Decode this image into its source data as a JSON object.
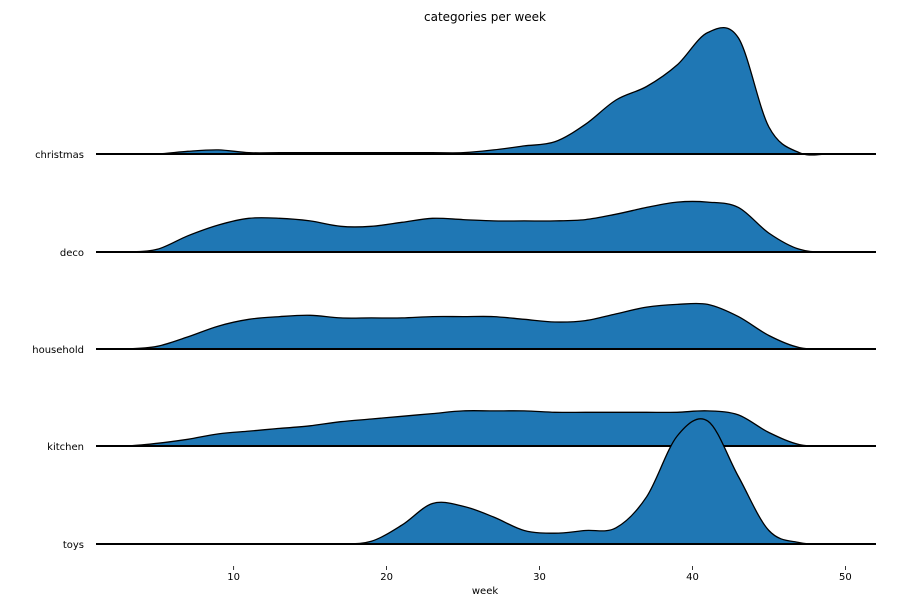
{
  "chart_data": {
    "type": "ridgeline",
    "title": "categories per week",
    "xlabel": "week",
    "ylabel": "",
    "xlim": [
      1,
      52
    ],
    "xticks": [
      10,
      20,
      30,
      40,
      50
    ],
    "grid": false,
    "legend": "none",
    "color": "#1f77b4",
    "edge_color": "#000000",
    "x": [
      1,
      3,
      5,
      7,
      9,
      11,
      13,
      15,
      17,
      19,
      21,
      23,
      25,
      27,
      29,
      31,
      33,
      35,
      37,
      39,
      41,
      43,
      45,
      47,
      49,
      52
    ],
    "series": [
      {
        "name": "christmas",
        "values": [
          0,
          0,
          0,
          0.02,
          0.03,
          0.01,
          0.01,
          0.01,
          0.01,
          0.01,
          0.01,
          0.01,
          0.01,
          0.03,
          0.06,
          0.09,
          0.22,
          0.4,
          0.5,
          0.66,
          0.9,
          0.86,
          0.2,
          0.01,
          0,
          0
        ]
      },
      {
        "name": "deco",
        "values": [
          0,
          0,
          0.02,
          0.12,
          0.2,
          0.25,
          0.25,
          0.23,
          0.19,
          0.19,
          0.22,
          0.25,
          0.24,
          0.23,
          0.23,
          0.23,
          0.24,
          0.28,
          0.33,
          0.37,
          0.37,
          0.33,
          0.14,
          0.02,
          0,
          0
        ]
      },
      {
        "name": "household",
        "values": [
          0,
          0,
          0.02,
          0.09,
          0.17,
          0.22,
          0.24,
          0.25,
          0.23,
          0.23,
          0.23,
          0.24,
          0.24,
          0.24,
          0.22,
          0.2,
          0.21,
          0.26,
          0.31,
          0.33,
          0.33,
          0.24,
          0.1,
          0.01,
          0,
          0
        ]
      },
      {
        "name": "kitchen",
        "values": [
          0,
          0,
          0.02,
          0.05,
          0.09,
          0.11,
          0.13,
          0.15,
          0.18,
          0.2,
          0.22,
          0.24,
          0.26,
          0.26,
          0.26,
          0.25,
          0.25,
          0.25,
          0.25,
          0.25,
          0.26,
          0.23,
          0.1,
          0.01,
          0,
          0
        ]
      },
      {
        "name": "toys",
        "values": [
          0,
          0,
          0,
          0,
          0,
          0,
          0,
          0,
          0,
          0.02,
          0.14,
          0.3,
          0.28,
          0.2,
          0.1,
          0.08,
          0.1,
          0.12,
          0.35,
          0.8,
          0.91,
          0.5,
          0.1,
          0.01,
          0,
          0
        ]
      }
    ]
  }
}
